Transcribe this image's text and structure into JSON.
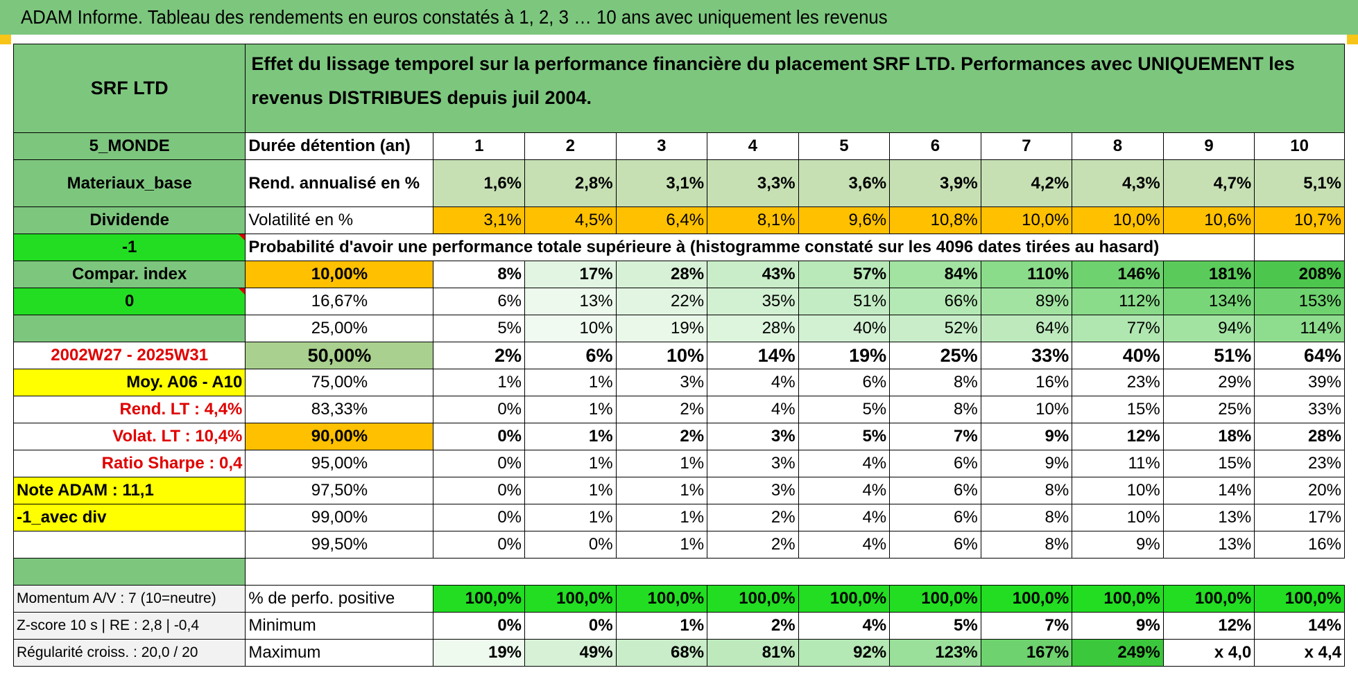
{
  "title": "ADAM Informe. Tableau des rendements en euros constatés à 1, 2, 3 … 10 ans avec uniquement les revenus",
  "header": {
    "left_title": "SRF LTD",
    "description": "Effet du lissage temporel sur la performance financière du placement SRF LTD. Performances avec UNIQUEMENT les revenus DISTRIBUES depuis juil 2004."
  },
  "left_labels": {
    "zone": "5_MONDE",
    "sector": "Materiaux_base",
    "div": "Dividende",
    "minus_one": "-1",
    "compar": "Compar. index",
    "zero": "0",
    "period": "2002W27 - 2025W31",
    "moy": "Moy. A06 - A10",
    "rend_lt": "Rend. LT :    4,4%",
    "volat_lt": "Volat. LT :    10,4%",
    "sharpe": "Ratio Sharpe :     0,4",
    "note": "Note ADAM : 11,1",
    "avec_div": "-1_avec div",
    "momentum": "Momentum A/V : 7 (10=neutre)",
    "zscore": "Z-score 10 s | RE : 2,8 | -0,4",
    "regularite": "Régularité croiss. : 20,0 / 20"
  },
  "rows": {
    "duree_label": "Durée détention (an)",
    "years": [
      "1",
      "2",
      "3",
      "4",
      "5",
      "6",
      "7",
      "8",
      "9",
      "10"
    ],
    "rend_label": "Rend. annualisé en %",
    "rend": [
      "1,6%",
      "2,8%",
      "3,1%",
      "3,3%",
      "3,6%",
      "3,9%",
      "4,2%",
      "4,3%",
      "4,7%",
      "5,1%"
    ],
    "vol_label": "Volatilité en %",
    "vol": [
      "3,1%",
      "4,5%",
      "6,4%",
      "8,1%",
      "9,6%",
      "10,8%",
      "10,0%",
      "10,0%",
      "10,6%",
      "10,7%"
    ],
    "proba_label": "Probabilité d'avoir une performance totale supérieure à (histogramme constaté sur les 4096 dates tirées au hasard)"
  },
  "prob_table": [
    {
      "pct": "10,00%",
      "vals": [
        "8%",
        "17%",
        "28%",
        "43%",
        "57%",
        "84%",
        "110%",
        "146%",
        "181%",
        "208%"
      ]
    },
    {
      "pct": "16,67%",
      "vals": [
        "6%",
        "13%",
        "22%",
        "35%",
        "51%",
        "66%",
        "89%",
        "112%",
        "134%",
        "153%"
      ]
    },
    {
      "pct": "25,00%",
      "vals": [
        "5%",
        "10%",
        "19%",
        "28%",
        "40%",
        "52%",
        "64%",
        "77%",
        "94%",
        "114%"
      ]
    },
    {
      "pct": "50,00%",
      "vals": [
        "2%",
        "6%",
        "10%",
        "14%",
        "19%",
        "25%",
        "33%",
        "40%",
        "51%",
        "64%"
      ]
    },
    {
      "pct": "75,00%",
      "vals": [
        "1%",
        "1%",
        "3%",
        "4%",
        "6%",
        "8%",
        "16%",
        "23%",
        "29%",
        "39%"
      ]
    },
    {
      "pct": "83,33%",
      "vals": [
        "0%",
        "1%",
        "2%",
        "4%",
        "5%",
        "8%",
        "10%",
        "15%",
        "25%",
        "33%"
      ]
    },
    {
      "pct": "90,00%",
      "vals": [
        "0%",
        "1%",
        "2%",
        "3%",
        "5%",
        "7%",
        "9%",
        "12%",
        "18%",
        "28%"
      ]
    },
    {
      "pct": "95,00%",
      "vals": [
        "0%",
        "1%",
        "1%",
        "3%",
        "4%",
        "6%",
        "9%",
        "11%",
        "15%",
        "23%"
      ]
    },
    {
      "pct": "97,50%",
      "vals": [
        "0%",
        "1%",
        "1%",
        "3%",
        "4%",
        "6%",
        "8%",
        "10%",
        "14%",
        "20%"
      ]
    },
    {
      "pct": "99,00%",
      "vals": [
        "0%",
        "1%",
        "1%",
        "2%",
        "4%",
        "6%",
        "8%",
        "10%",
        "13%",
        "17%"
      ]
    },
    {
      "pct": "99,50%",
      "vals": [
        "0%",
        "0%",
        "1%",
        "2%",
        "4%",
        "6%",
        "8%",
        "9%",
        "13%",
        "16%"
      ]
    }
  ],
  "bottom": {
    "pos_label": "% de perfo. positive",
    "pos": [
      "100,0%",
      "100,0%",
      "100,0%",
      "100,0%",
      "100,0%",
      "100,0%",
      "100,0%",
      "100,0%",
      "100,0%",
      "100,0%"
    ],
    "min_label": "Minimum",
    "min": [
      "0%",
      "0%",
      "1%",
      "2%",
      "4%",
      "5%",
      "7%",
      "9%",
      "12%",
      "14%"
    ],
    "max_label": "Maximum",
    "max": [
      "19%",
      "49%",
      "68%",
      "81%",
      "92%",
      "123%",
      "167%",
      "249%",
      "x 4,0",
      "x 4,4"
    ]
  },
  "colors": {
    "header_green": "#7dc67e",
    "bright_green": "#22dd22",
    "orange": "#ffc000",
    "yellow": "#ffff00",
    "red_text": "#e00000"
  }
}
